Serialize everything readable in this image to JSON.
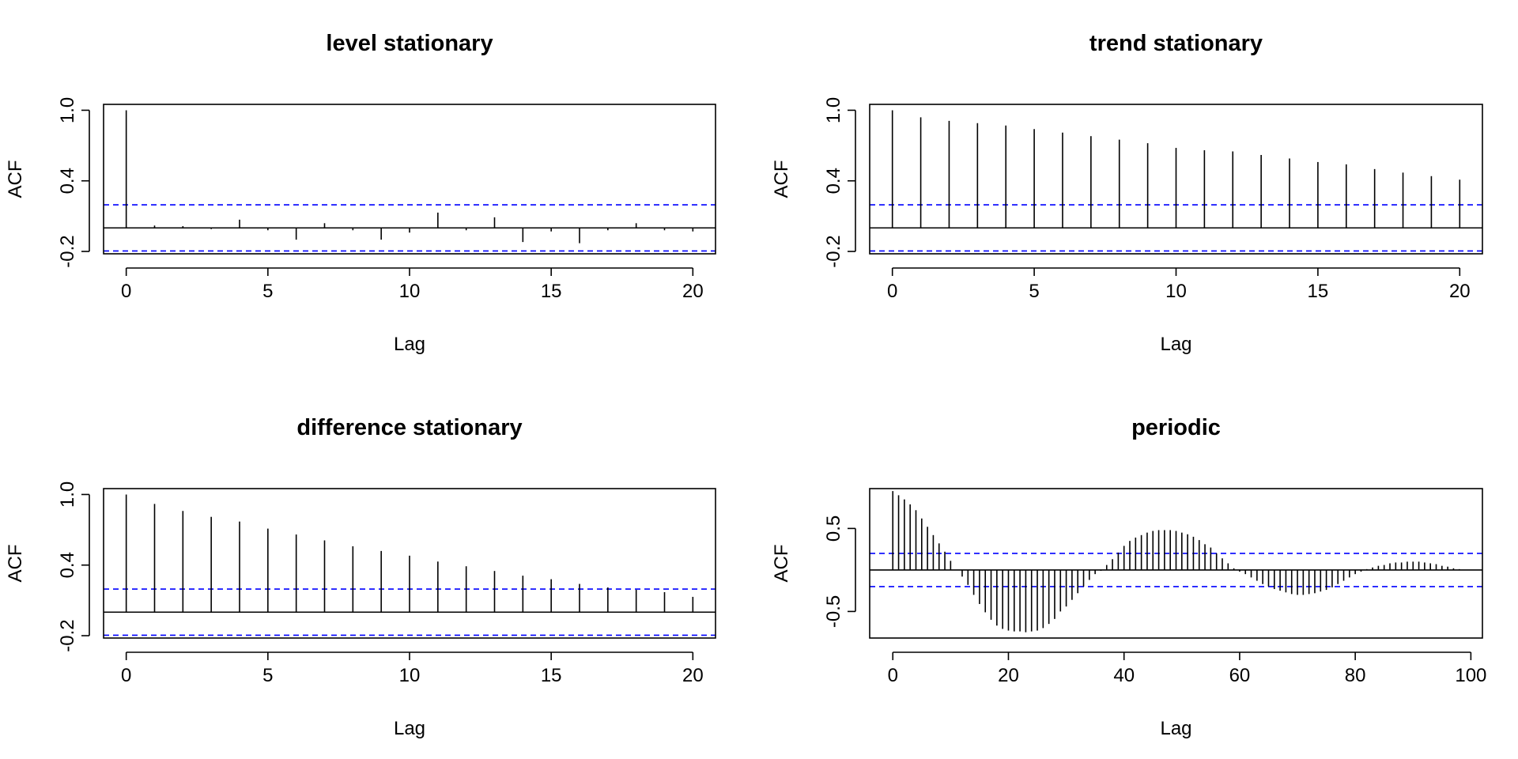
{
  "chart_data": [
    {
      "type": "bar",
      "subtype": "acf",
      "title": "level stationary",
      "xlabel": "Lag",
      "ylabel": "ACF",
      "xlim": [
        -0.8,
        20.8
      ],
      "ylim": [
        -0.22,
        1.05
      ],
      "xticks": [
        0,
        5,
        10,
        15,
        20
      ],
      "yticks": [
        -0.2,
        0.4,
        1.0
      ],
      "ytick_labels": [
        "-0.2",
        "0.4",
        "1.0"
      ],
      "confidence_band": 0.196,
      "band_color": "#0000ff",
      "lags": [
        0,
        1,
        2,
        3,
        4,
        5,
        6,
        7,
        8,
        9,
        10,
        11,
        12,
        13,
        14,
        15,
        16,
        17,
        18,
        19,
        20
      ],
      "values": [
        1.0,
        0.02,
        0.015,
        -0.01,
        0.07,
        -0.02,
        -0.1,
        0.04,
        -0.02,
        -0.1,
        -0.04,
        0.13,
        -0.02,
        0.09,
        -0.12,
        -0.03,
        -0.13,
        -0.02,
        0.04,
        -0.02,
        -0.03
      ]
    },
    {
      "type": "bar",
      "subtype": "acf",
      "title": "trend stationary",
      "xlabel": "Lag",
      "ylabel": "ACF",
      "xlim": [
        -0.8,
        20.8
      ],
      "ylim": [
        -0.22,
        1.05
      ],
      "xticks": [
        0,
        5,
        10,
        15,
        20
      ],
      "yticks": [
        -0.2,
        0.4,
        1.0
      ],
      "ytick_labels": [
        "-0.2",
        "0.4",
        "1.0"
      ],
      "confidence_band": 0.196,
      "band_color": "#0000ff",
      "lags": [
        0,
        1,
        2,
        3,
        4,
        5,
        6,
        7,
        8,
        9,
        10,
        11,
        12,
        13,
        14,
        15,
        16,
        17,
        18,
        19,
        20
      ],
      "values": [
        1.0,
        0.94,
        0.91,
        0.89,
        0.87,
        0.84,
        0.81,
        0.78,
        0.75,
        0.72,
        0.68,
        0.66,
        0.65,
        0.62,
        0.59,
        0.56,
        0.54,
        0.5,
        0.47,
        0.44,
        0.41
      ]
    },
    {
      "type": "bar",
      "subtype": "acf",
      "title": "difference stationary",
      "xlabel": "Lag",
      "ylabel": "ACF",
      "xlim": [
        -0.8,
        20.8
      ],
      "ylim": [
        -0.22,
        1.05
      ],
      "xticks": [
        0,
        5,
        10,
        15,
        20
      ],
      "yticks": [
        -0.2,
        0.4,
        1.0
      ],
      "ytick_labels": [
        "-0.2",
        "0.4",
        "1.0"
      ],
      "confidence_band": 0.196,
      "band_color": "#0000ff",
      "lags": [
        0,
        1,
        2,
        3,
        4,
        5,
        6,
        7,
        8,
        9,
        10,
        11,
        12,
        13,
        14,
        15,
        16,
        17,
        18,
        19,
        20
      ],
      "values": [
        1.0,
        0.92,
        0.86,
        0.81,
        0.77,
        0.71,
        0.66,
        0.61,
        0.56,
        0.52,
        0.48,
        0.43,
        0.39,
        0.35,
        0.31,
        0.28,
        0.24,
        0.21,
        0.19,
        0.17,
        0.13
      ]
    },
    {
      "type": "bar",
      "subtype": "acf",
      "title": "periodic",
      "xlabel": "Lag",
      "ylabel": "ACF",
      "xlim": [
        -4,
        102
      ],
      "ylim": [
        -0.82,
        0.98
      ],
      "xticks": [
        0,
        20,
        40,
        60,
        80,
        100
      ],
      "yticks": [
        -0.5,
        0.5
      ],
      "ytick_labels": [
        "-0.5",
        "0.5"
      ],
      "confidence_band": 0.2,
      "band_color": "#0000ff",
      "lags": [
        0,
        1,
        2,
        3,
        4,
        5,
        6,
        7,
        8,
        9,
        10,
        11,
        12,
        13,
        14,
        15,
        16,
        17,
        18,
        19,
        20,
        21,
        22,
        23,
        24,
        25,
        26,
        27,
        28,
        29,
        30,
        31,
        32,
        33,
        34,
        35,
        36,
        37,
        38,
        39,
        40,
        41,
        42,
        43,
        44,
        45,
        46,
        47,
        48,
        49,
        50,
        51,
        52,
        53,
        54,
        55,
        56,
        57,
        58,
        59,
        60,
        61,
        62,
        63,
        64,
        65,
        66,
        67,
        68,
        69,
        70,
        71,
        72,
        73,
        74,
        75,
        76,
        77,
        78,
        79,
        80,
        81,
        82,
        83,
        84,
        85,
        86,
        87,
        88,
        89,
        90,
        91,
        92,
        93,
        94,
        95,
        96,
        97,
        98,
        99
      ],
      "values": [
        0.95,
        0.9,
        0.85,
        0.79,
        0.72,
        0.62,
        0.52,
        0.42,
        0.32,
        0.22,
        0.11,
        0.0,
        -0.08,
        -0.18,
        -0.3,
        -0.41,
        -0.51,
        -0.6,
        -0.67,
        -0.71,
        -0.73,
        -0.74,
        -0.74,
        -0.75,
        -0.74,
        -0.73,
        -0.7,
        -0.65,
        -0.59,
        -0.5,
        -0.44,
        -0.36,
        -0.28,
        -0.2,
        -0.12,
        -0.05,
        -0.01,
        0.06,
        0.13,
        0.21,
        0.29,
        0.35,
        0.39,
        0.42,
        0.45,
        0.47,
        0.48,
        0.48,
        0.48,
        0.47,
        0.45,
        0.43,
        0.4,
        0.36,
        0.31,
        0.27,
        0.2,
        0.14,
        0.08,
        0.02,
        -0.02,
        -0.05,
        -0.09,
        -0.13,
        -0.17,
        -0.2,
        -0.23,
        -0.25,
        -0.27,
        -0.29,
        -0.3,
        -0.3,
        -0.29,
        -0.28,
        -0.26,
        -0.24,
        -0.21,
        -0.17,
        -0.13,
        -0.09,
        -0.05,
        -0.02,
        0.01,
        0.03,
        0.05,
        0.06,
        0.08,
        0.09,
        0.09,
        0.1,
        0.1,
        0.1,
        0.09,
        0.08,
        0.07,
        0.05,
        0.04,
        0.02,
        0.01,
        0.0
      ]
    }
  ]
}
